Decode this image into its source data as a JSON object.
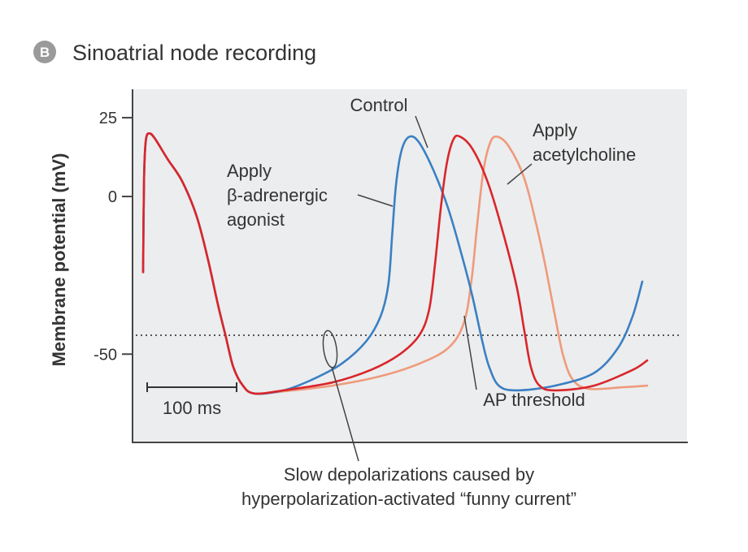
{
  "panel": {
    "letter": "B",
    "title": "Sinoatrial node recording"
  },
  "colors": {
    "control": "#d9262b",
    "beta_agonist": "#3a80c3",
    "acetylcholine": "#ef9a7c",
    "threshold": "#555555",
    "plot_background": "#ecedee",
    "axis": "#444444",
    "badge": "#9a9a9a"
  },
  "chart_data": {
    "type": "line",
    "title": "Sinoatrial node recording",
    "ylabel": "Membrane potential (mV)",
    "xlabel": "",
    "x_unit": "ms",
    "ylim": [
      -78,
      34
    ],
    "xlim": [
      0,
      520
    ],
    "yticks": [
      25,
      0,
      -50
    ],
    "ytick_labels": [
      "25",
      "0",
      "-50"
    ],
    "grid": false,
    "legend": "none (curves labeled directly)",
    "threshold": {
      "label": "AP threshold",
      "value": -44
    },
    "scale_bar": {
      "label": "100 ms",
      "duration": 100
    },
    "series": [
      {
        "name": "Control",
        "key": "control",
        "points": [
          [
            5,
            -24
          ],
          [
            6,
            6
          ],
          [
            8,
            18
          ],
          [
            12,
            20
          ],
          [
            18,
            18
          ],
          [
            30,
            12
          ],
          [
            45,
            5
          ],
          [
            60,
            -6
          ],
          [
            72,
            -20
          ],
          [
            82,
            -34
          ],
          [
            90,
            -44
          ],
          [
            98,
            -54
          ],
          [
            108,
            -60
          ],
          [
            120,
            -62.5
          ],
          [
            150,
            -61.5
          ],
          [
            200,
            -59
          ],
          [
            240,
            -55
          ],
          [
            270,
            -50
          ],
          [
            290,
            -44
          ],
          [
            300,
            -36
          ],
          [
            306,
            -22
          ],
          [
            312,
            -4
          ],
          [
            318,
            10
          ],
          [
            325,
            18
          ],
          [
            332,
            19
          ],
          [
            345,
            15
          ],
          [
            360,
            5
          ],
          [
            375,
            -10
          ],
          [
            390,
            -28
          ],
          [
            398,
            -42
          ],
          [
            405,
            -54
          ],
          [
            414,
            -60
          ],
          [
            430,
            -61.5
          ],
          [
            470,
            -60
          ],
          [
            510,
            -55
          ],
          [
            525,
            -52
          ]
        ]
      },
      {
        "name": "Apply β-adrenergic agonist",
        "key": "beta_agonist",
        "points": [
          [
            5,
            -24
          ],
          [
            6,
            6
          ],
          [
            8,
            18
          ],
          [
            12,
            20
          ],
          [
            18,
            18
          ],
          [
            30,
            12
          ],
          [
            45,
            5
          ],
          [
            60,
            -6
          ],
          [
            72,
            -20
          ],
          [
            82,
            -34
          ],
          [
            90,
            -44
          ],
          [
            98,
            -54
          ],
          [
            108,
            -60
          ],
          [
            120,
            -62.5
          ],
          [
            150,
            -61.5
          ],
          [
            180,
            -58
          ],
          [
            210,
            -53
          ],
          [
            235,
            -46
          ],
          [
            250,
            -38
          ],
          [
            258,
            -28
          ],
          [
            262,
            -12
          ],
          [
            266,
            4
          ],
          [
            272,
            15
          ],
          [
            280,
            19
          ],
          [
            290,
            17
          ],
          [
            305,
            8
          ],
          [
            320,
            -4
          ],
          [
            335,
            -20
          ],
          [
            345,
            -32
          ],
          [
            355,
            -46
          ],
          [
            362,
            -54
          ],
          [
            372,
            -60
          ],
          [
            390,
            -61.5
          ],
          [
            430,
            -60
          ],
          [
            470,
            -56
          ],
          [
            495,
            -48
          ],
          [
            510,
            -38
          ],
          [
            520,
            -27
          ]
        ]
      },
      {
        "name": "Apply acetylcholine",
        "key": "acetylcholine",
        "points": [
          [
            5,
            -24
          ],
          [
            6,
            6
          ],
          [
            8,
            18
          ],
          [
            12,
            20
          ],
          [
            18,
            18
          ],
          [
            30,
            12
          ],
          [
            45,
            5
          ],
          [
            60,
            -6
          ],
          [
            72,
            -20
          ],
          [
            82,
            -34
          ],
          [
            90,
            -44
          ],
          [
            98,
            -54
          ],
          [
            108,
            -60
          ],
          [
            120,
            -62.5
          ],
          [
            150,
            -61.8
          ],
          [
            200,
            -60
          ],
          [
            250,
            -57
          ],
          [
            290,
            -53
          ],
          [
            320,
            -48
          ],
          [
            336,
            -40
          ],
          [
            344,
            -26
          ],
          [
            350,
            -8
          ],
          [
            356,
            8
          ],
          [
            363,
            17
          ],
          [
            370,
            19
          ],
          [
            382,
            16
          ],
          [
            398,
            6
          ],
          [
            410,
            -8
          ],
          [
            420,
            -22
          ],
          [
            430,
            -38
          ],
          [
            438,
            -50
          ],
          [
            448,
            -58
          ],
          [
            465,
            -61
          ],
          [
            500,
            -60.5
          ],
          [
            525,
            -60
          ]
        ]
      }
    ],
    "annotations": {
      "control": "Control",
      "beta": [
        "Apply",
        "β-adrenergic",
        "agonist"
      ],
      "ach": [
        "Apply",
        "acetylcholine"
      ],
      "threshold": "AP threshold",
      "funny": [
        "Slow depolarizations caused by",
        "hyperpolarization-activated “funny current”"
      ]
    }
  }
}
